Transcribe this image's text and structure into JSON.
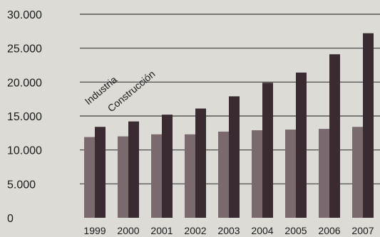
{
  "chart_data": {
    "type": "bar",
    "title": "",
    "xlabel": "",
    "ylabel": "",
    "categories": [
      "1999",
      "2000",
      "2001",
      "2002",
      "2003",
      "2004",
      "2005",
      "2006",
      "2007"
    ],
    "series": [
      {
        "name": "Industria",
        "color": "#7a6a6d",
        "values": [
          11900,
          12000,
          12300,
          12300,
          12700,
          12900,
          13000,
          13100,
          13400
        ]
      },
      {
        "name": "Construcción",
        "color": "#3a2a32",
        "values": [
          13400,
          14200,
          15200,
          16100,
          17900,
          19900,
          21400,
          24100,
          27200
        ]
      }
    ],
    "yticks": [
      "0",
      "5.000",
      "10.000",
      "15.000",
      "20.000",
      "25.000",
      "30.000"
    ],
    "ylim": [
      0,
      30000
    ],
    "grid": true
  }
}
